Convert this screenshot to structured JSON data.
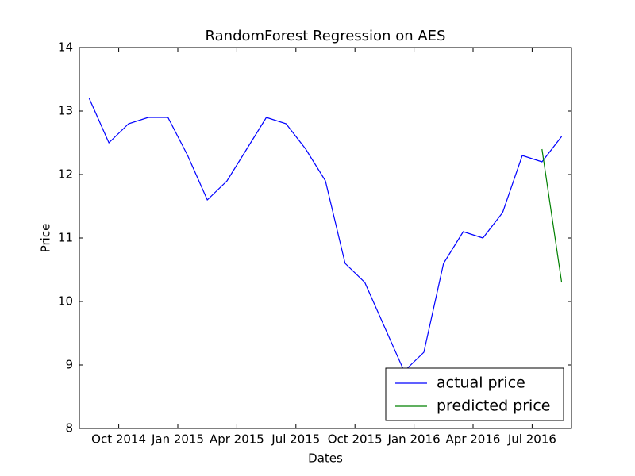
{
  "chart_data": {
    "type": "line",
    "title": "RandomForest Regression on AES",
    "x_label": "Dates",
    "y_label": "Price",
    "x": [
      "2014-08",
      "2014-09",
      "2014-10",
      "2014-11",
      "2014-12",
      "2015-01",
      "2015-02",
      "2015-03",
      "2015-04",
      "2015-05",
      "2015-06",
      "2015-07",
      "2015-08",
      "2015-09",
      "2015-10",
      "2015-11",
      "2015-12",
      "2016-01",
      "2016-02",
      "2016-03",
      "2016-04",
      "2016-05",
      "2016-06",
      "2016-07",
      "2016-08"
    ],
    "series": [
      {
        "name": "actual price",
        "color": "#0000ff",
        "values": [
          13.2,
          12.5,
          12.8,
          12.9,
          12.9,
          12.3,
          11.6,
          11.9,
          12.4,
          12.9,
          12.8,
          12.4,
          11.9,
          10.6,
          10.3,
          9.6,
          8.9,
          9.2,
          10.6,
          11.1,
          11.0,
          11.4,
          12.3,
          12.2,
          12.6
        ]
      },
      {
        "name": "predicted price",
        "color": "#008000",
        "values": [
          null,
          null,
          null,
          null,
          null,
          null,
          null,
          null,
          null,
          null,
          null,
          null,
          null,
          null,
          null,
          null,
          null,
          null,
          null,
          null,
          null,
          null,
          null,
          12.4,
          10.3
        ]
      }
    ],
    "xlim": [
      "2014-08",
      "2016-09"
    ],
    "xticks": [
      {
        "value": "2014-10",
        "label": "Oct 2014"
      },
      {
        "value": "2015-01",
        "label": "Jan 2015"
      },
      {
        "value": "2015-04",
        "label": "Apr 2015"
      },
      {
        "value": "2015-07",
        "label": "Jul 2015"
      },
      {
        "value": "2015-10",
        "label": "Oct 2015"
      },
      {
        "value": "2016-01",
        "label": "Jan 2016"
      },
      {
        "value": "2016-04",
        "label": "Apr 2016"
      },
      {
        "value": "2016-07",
        "label": "Jul 2016"
      }
    ],
    "ylim": [
      8,
      14
    ],
    "yticks": [
      8,
      9,
      10,
      11,
      12,
      13,
      14
    ],
    "legend": "lower right"
  }
}
